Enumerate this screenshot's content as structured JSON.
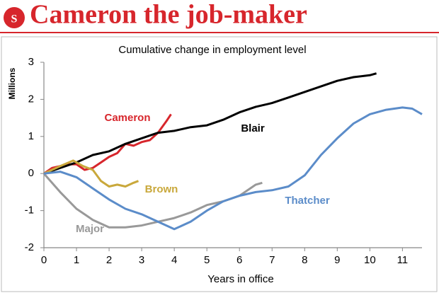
{
  "logo": "S",
  "chart_data": {
    "type": "line",
    "title": "Cameron the job-maker",
    "subtitle": "Cumulative change in employment level",
    "y_label": "Millions",
    "x_label": "Years in office",
    "xlim": [
      0,
      11.6
    ],
    "xticks": [
      0,
      1,
      2,
      3,
      4,
      5,
      6,
      7,
      8,
      9,
      10,
      11
    ],
    "ylim": [
      -2,
      3
    ],
    "yticks": [
      -2,
      -1,
      0,
      1,
      2,
      3
    ],
    "grid": false,
    "series": [
      {
        "name": "Cameron",
        "color": "#d7262c",
        "x": [
          0,
          0.25,
          0.5,
          0.75,
          1,
          1.25,
          1.5,
          1.75,
          2,
          2.25,
          2.5,
          2.75,
          3,
          3.25,
          3.5,
          3.75,
          3.9
        ],
        "values": [
          0,
          0.15,
          0.2,
          0.25,
          0.25,
          0.1,
          0.15,
          0.3,
          0.45,
          0.55,
          0.8,
          0.75,
          0.85,
          0.9,
          1.1,
          1.4,
          1.6
        ]
      },
      {
        "name": "Blair",
        "color": "#000000",
        "x": [
          0,
          0.5,
          1,
          1.5,
          2,
          2.5,
          3,
          3.5,
          4,
          4.5,
          5,
          5.5,
          6,
          6.5,
          7,
          7.5,
          8,
          8.5,
          9,
          9.5,
          10,
          10.2
        ],
        "values": [
          0,
          0.15,
          0.3,
          0.5,
          0.6,
          0.8,
          0.95,
          1.1,
          1.15,
          1.25,
          1.3,
          1.45,
          1.65,
          1.8,
          1.9,
          2.05,
          2.2,
          2.35,
          2.5,
          2.6,
          2.65,
          2.7
        ]
      },
      {
        "name": "Brown",
        "color": "#c9a83b",
        "x": [
          0,
          0.5,
          0.9,
          1.2,
          1.5,
          1.75,
          2,
          2.25,
          2.5,
          2.75,
          2.9
        ],
        "values": [
          0,
          0.2,
          0.35,
          0.2,
          0.1,
          -0.2,
          -0.35,
          -0.3,
          -0.35,
          -0.25,
          -0.2
        ]
      },
      {
        "name": "Major",
        "color": "#999999",
        "x": [
          0,
          0.5,
          1,
          1.5,
          2,
          2.5,
          3,
          3.5,
          4,
          4.5,
          5,
          5.5,
          6,
          6.5,
          6.7
        ],
        "values": [
          0,
          -0.5,
          -0.95,
          -1.25,
          -1.45,
          -1.45,
          -1.4,
          -1.3,
          -1.2,
          -1.05,
          -0.85,
          -0.75,
          -0.6,
          -0.3,
          -0.25
        ]
      },
      {
        "name": "Thatcher",
        "color": "#5b8cc9",
        "x": [
          0,
          0.5,
          1,
          1.5,
          2,
          2.5,
          3,
          3.5,
          4,
          4.5,
          5,
          5.5,
          6,
          6.5,
          7,
          7.5,
          8,
          8.5,
          9,
          9.5,
          10,
          10.5,
          11,
          11.3,
          11.6
        ],
        "values": [
          0,
          0.05,
          -0.1,
          -0.4,
          -0.7,
          -0.95,
          -1.1,
          -1.3,
          -1.5,
          -1.3,
          -1.0,
          -0.75,
          -0.6,
          -0.5,
          -0.45,
          -0.35,
          -0.05,
          0.5,
          0.95,
          1.35,
          1.6,
          1.72,
          1.78,
          1.75,
          1.6
        ]
      }
    ]
  }
}
